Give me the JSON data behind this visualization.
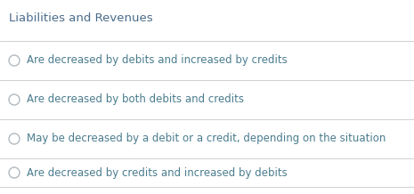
{
  "title": "Liabilities and Revenues",
  "title_color": "#4a6b8a",
  "title_fontsize": 9.5,
  "options": [
    "Are decreased by debits and increased by credits",
    "Are decreased by both debits and credits",
    "May be decreased by a debit or a credit, depending on the situation",
    "Are decreased by credits and increased by debits"
  ],
  "option_color": "#4a7c8e",
  "option_fontsize": 8.5,
  "background_color": "#ffffff",
  "separator_color": "#d0d0d0",
  "radio_edge_color": "#b0b8c0",
  "radio_lw": 1.0
}
